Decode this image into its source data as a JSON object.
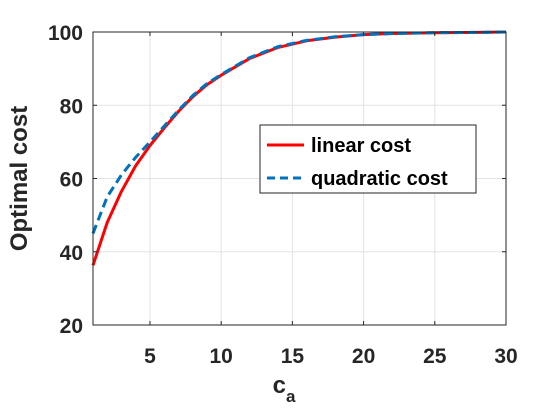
{
  "chart_data": {
    "type": "line",
    "xlabel": "c",
    "xlabel_subscript": "a",
    "ylabel": "Optimal cost",
    "xlim": [
      1,
      30
    ],
    "ylim": [
      20,
      100
    ],
    "xticks": [
      5,
      10,
      15,
      20,
      25,
      30
    ],
    "yticks": [
      20,
      40,
      60,
      80,
      100
    ],
    "grid": true,
    "legend_position": "right",
    "series": [
      {
        "name": "linear cost",
        "color": "#ff0000",
        "style": "solid",
        "x": [
          1,
          2,
          3,
          4,
          5,
          6,
          7,
          8,
          9,
          10,
          12,
          14,
          16,
          18,
          20,
          22,
          25,
          28,
          30
        ],
        "y": [
          36.3,
          48,
          56.5,
          63.5,
          69,
          73.8,
          78.3,
          82.3,
          85.6,
          88.2,
          92.8,
          95.8,
          97.6,
          98.6,
          99.3,
          99.6,
          99.8,
          99.9,
          100
        ]
      },
      {
        "name": "quadratic cost",
        "color": "#0072bd",
        "style": "dashed",
        "x": [
          1,
          2,
          3,
          4,
          5,
          6,
          7,
          8,
          9,
          10,
          12,
          14,
          16,
          18,
          20,
          22,
          25,
          28,
          30
        ],
        "y": [
          45,
          55,
          61,
          65.8,
          70,
          74.3,
          78.6,
          82.6,
          85.9,
          88.4,
          93,
          96,
          97.7,
          98.7,
          99.3,
          99.6,
          99.8,
          99.9,
          100
        ]
      }
    ]
  }
}
